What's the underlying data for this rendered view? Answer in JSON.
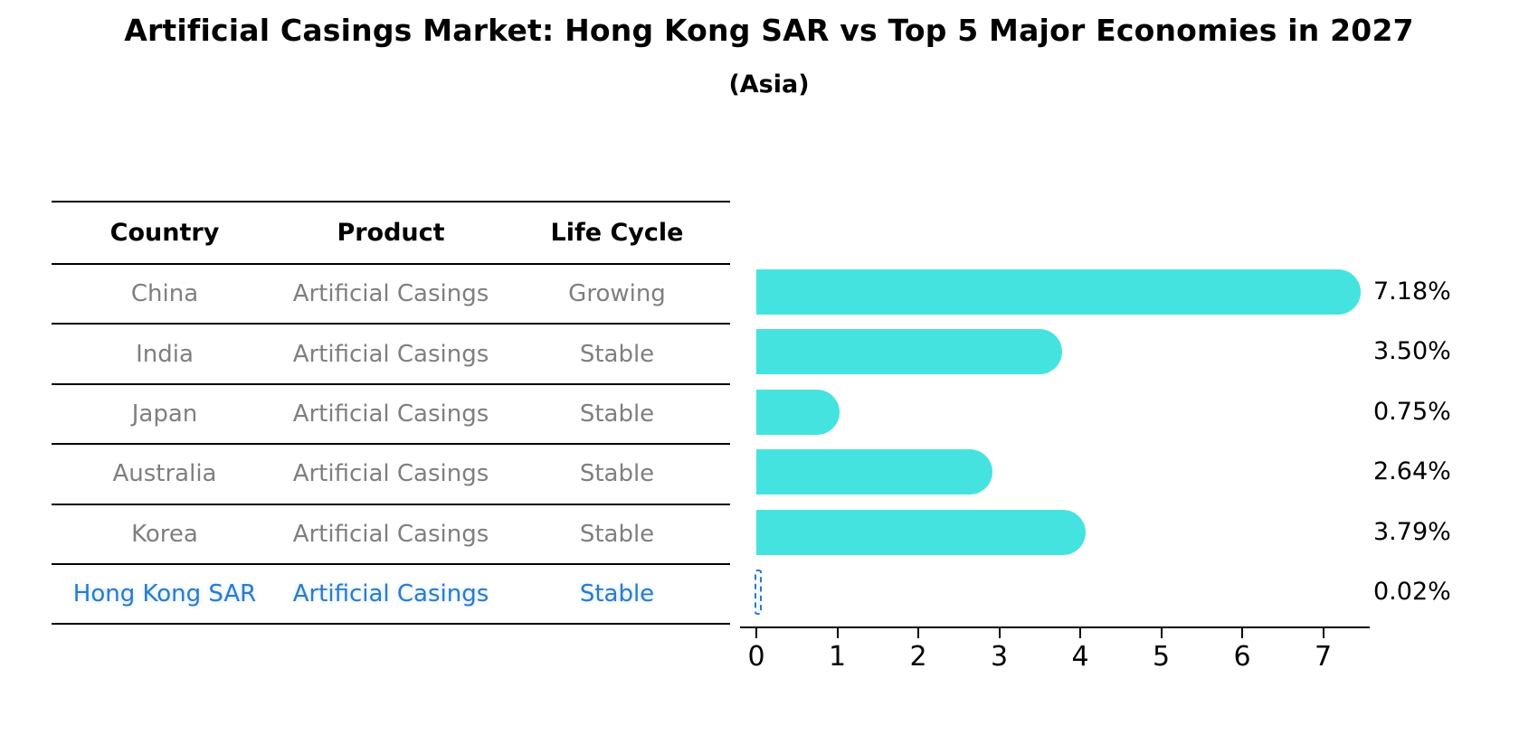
{
  "title": "Artificial Casings Market: Hong Kong SAR vs Top 5 Major Economies in 2027",
  "subtitle": "(Asia)",
  "colors": {
    "bar": "#45e3e0",
    "highlight_blue": "#2d7ac8",
    "table_text_gray": "#7f7f7f",
    "header_black": "#000000"
  },
  "table": {
    "headers": [
      "Country",
      "Product",
      "Life Cycle"
    ],
    "rows": [
      {
        "country": "China",
        "product": "Artificial Casings",
        "life_cycle": "Growing",
        "highlighted": false
      },
      {
        "country": "India",
        "product": "Artificial Casings",
        "life_cycle": "Stable",
        "highlighted": false
      },
      {
        "country": "Japan",
        "product": "Artificial Casings",
        "life_cycle": "Stable",
        "highlighted": false
      },
      {
        "country": "Australia",
        "product": "Artificial Casings",
        "life_cycle": "Stable",
        "highlighted": false
      },
      {
        "country": "Korea",
        "product": "Artificial Casings",
        "life_cycle": "Stable",
        "highlighted": false
      },
      {
        "country": "Hong Kong SAR",
        "product": "Artificial Casings",
        "life_cycle": "Stable",
        "highlighted": true
      }
    ]
  },
  "chart_data": {
    "type": "bar",
    "orientation": "horizontal",
    "title": "Artificial Casings Market: Hong Kong SAR vs Top 5 Major Economies in 2027 (Asia)",
    "categories": [
      "China",
      "India",
      "Japan",
      "Australia",
      "Korea",
      "Hong Kong SAR"
    ],
    "values": [
      7.18,
      3.5,
      0.75,
      2.64,
      3.79,
      0.02
    ],
    "value_labels": [
      "7.18%",
      "3.50%",
      "0.75%",
      "2.64%",
      "3.79%",
      "0.02%"
    ],
    "xlabel": "",
    "ylabel": "",
    "xlim": [
      0,
      7.5
    ],
    "xticks": [
      0,
      1,
      2,
      3,
      4,
      5,
      6,
      7
    ],
    "grid": false,
    "legend": false,
    "highlight_index": 5
  }
}
